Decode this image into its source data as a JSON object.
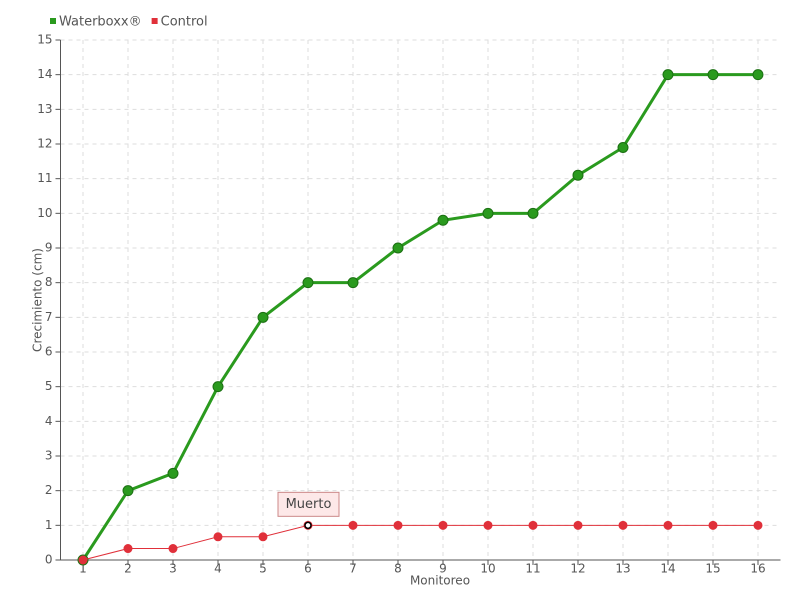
{
  "chart_data": {
    "type": "line",
    "x_label": "Monitoreo",
    "y_label": "Crecimiento (cm)",
    "x": [
      1,
      2,
      3,
      4,
      5,
      6,
      7,
      8,
      9,
      10,
      11,
      12,
      13,
      14,
      15,
      16
    ],
    "series": [
      {
        "name": "Waterboxx®",
        "color": "#2a9a1e",
        "values": [
          0,
          2,
          2.5,
          5,
          7,
          8,
          8,
          9,
          9.8,
          10,
          10,
          11.1,
          11.9,
          14,
          14,
          14
        ]
      },
      {
        "name": "Control",
        "color": "#e0303a",
        "values": [
          0,
          0.33,
          0.33,
          0.67,
          0.67,
          1,
          1,
          1,
          1,
          1,
          1,
          1,
          1,
          1,
          1,
          1
        ]
      }
    ],
    "xlim": [
      0.5,
      16.5
    ],
    "xticks": [
      1,
      2,
      3,
      4,
      5,
      6,
      7,
      8,
      9,
      10,
      11,
      12,
      13,
      14,
      15,
      16
    ],
    "ylim": [
      0,
      15
    ],
    "yticks": [
      0,
      1,
      2,
      3,
      4,
      5,
      6,
      7,
      8,
      9,
      10,
      11,
      12,
      13,
      14,
      15
    ],
    "grid": true,
    "legend": "top-left",
    "annotation": {
      "text": "Muerto",
      "x": 6,
      "y": 1
    }
  }
}
